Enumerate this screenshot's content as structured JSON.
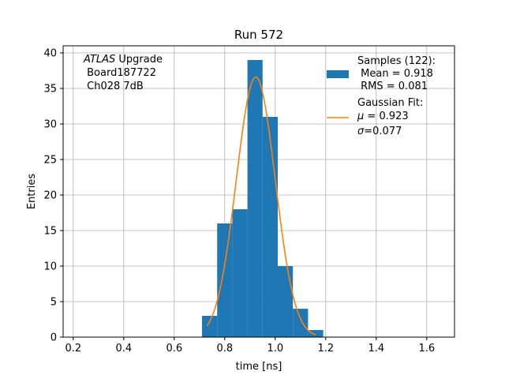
{
  "chart_data": {
    "type": "bar",
    "title": "Run 572",
    "xlabel": "time [ns]",
    "ylabel": "Entries",
    "xlim": [
      0.16,
      1.71
    ],
    "ylim": [
      0,
      41
    ],
    "x_ticks": [
      0.2,
      0.4,
      0.6,
      0.8,
      1.0,
      1.2,
      1.4,
      1.6
    ],
    "x_tick_labels": [
      "0.2",
      "0.4",
      "0.6",
      "0.8",
      "1.0",
      "1.2",
      "1.4",
      "1.6"
    ],
    "y_ticks": [
      0,
      5,
      10,
      15,
      20,
      25,
      30,
      35,
      40
    ],
    "y_tick_labels": [
      "0",
      "5",
      "10",
      "15",
      "20",
      "25",
      "30",
      "35",
      "40"
    ],
    "grid": true,
    "histogram": {
      "bin_edges": [
        0.71,
        0.77,
        0.83,
        0.89,
        0.95,
        1.01,
        1.07,
        1.13,
        1.19
      ],
      "counts": [
        3,
        16,
        18,
        39,
        31,
        10,
        4,
        1
      ],
      "color": "#1f77b4"
    },
    "fit": {
      "type": "gaussian",
      "mu": 0.923,
      "sigma": 0.077,
      "amplitude": 36.6,
      "x_range": [
        0.73,
        1.16
      ],
      "color": "#ff7f0e"
    },
    "annotation": {
      "lines": [
        {
          "italic": "ATLAS",
          "rest": " Upgrade"
        },
        {
          "italic": "",
          "rest": " Board187722"
        },
        {
          "italic": "",
          "rest": " Ch028 7dB"
        }
      ]
    },
    "legend": {
      "position": "top-right",
      "entries": [
        {
          "marker": "patch",
          "color": "#1f77b4",
          "lines": [
            "Samples (122):",
            " Mean = 0.918",
            " RMS = 0.081"
          ]
        },
        {
          "marker": "line",
          "color": "#ff7f0e",
          "lines": [
            "Gaussian Fit:"
          ],
          "mu_line": {
            "symbol": "μ",
            "text": " = 0.923"
          },
          "sigma_line": {
            "symbol": "σ",
            "text": "=0.077"
          }
        }
      ]
    }
  }
}
